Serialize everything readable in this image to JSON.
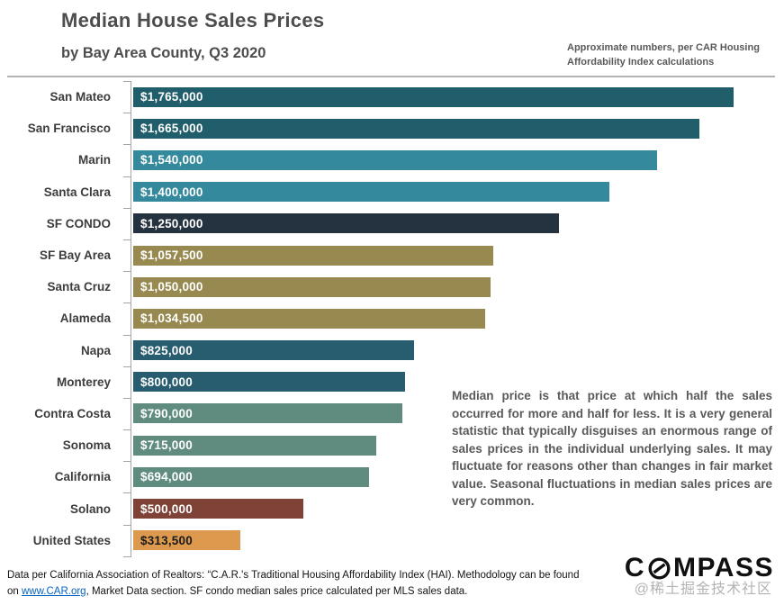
{
  "chart_data": {
    "type": "bar",
    "orientation": "horizontal",
    "title": "Median House Sales Prices",
    "subtitle": "by Bay Area County, Q3 2020",
    "note": "Approximate numbers, per CAR Housing Affordability Index calculations",
    "categories": [
      "San Mateo",
      "San Francisco",
      "Marin",
      "Santa Clara",
      "SF CONDO",
      "SF Bay Area",
      "Santa Cruz",
      "Alameda",
      "Napa",
      "Monterey",
      "Contra Costa",
      "Sonoma",
      "California",
      "Solano",
      "United States"
    ],
    "values": [
      1765000,
      1665000,
      1540000,
      1400000,
      1250000,
      1057500,
      1050000,
      1034500,
      825000,
      800000,
      790000,
      715000,
      694000,
      500000,
      313500
    ],
    "value_labels": [
      "$1,765,000",
      "$1,665,000",
      "$1,540,000",
      "$1,400,000",
      "$1,250,000",
      "$1,057,500",
      "$1,050,000",
      "$1,034,500",
      "$825,000",
      "$800,000",
      "$790,000",
      "$715,000",
      "$694,000",
      "$500,000",
      "$313,500"
    ],
    "bar_colors": [
      "#215e6b",
      "#215e6b",
      "#35899d",
      "#35899d",
      "#253240",
      "#97894f",
      "#97894f",
      "#97894f",
      "#275d6f",
      "#275d6f",
      "#5f8c7f",
      "#5f8c7f",
      "#5f8c7f",
      "#7e4237",
      "#dd9a4e"
    ],
    "value_label_colors": [
      "#ffffff",
      "#ffffff",
      "#ffffff",
      "#ffffff",
      "#ffffff",
      "#ffffff",
      "#ffffff",
      "#ffffff",
      "#ffffff",
      "#ffffff",
      "#ffffff",
      "#ffffff",
      "#ffffff",
      "#ffffff",
      "#1a1a1a"
    ],
    "xlim": [
      0,
      1886000
    ],
    "grid": false,
    "axis_color": "#a6a6a6",
    "legend": "none",
    "annotation": "Median price is that price at which half the sales occurred for more and half for less. It is a very general statistic that typically disguises an enormous range of sales prices in the individual underlying sales. It may fluctuate for reasons other than changes in fair market value. Seasonal fluctuations in median sales prices are very common."
  },
  "footer": {
    "line1": "Data per California Association of Realtors: “C.A.R.'s Traditional Housing Affordability Index (HAI). Methodology",
    "line2_prefix": "can be found on ",
    "link": "www.CAR.org",
    "line2_suffix": ",  Market Data section. SF condo median sales price calculated per MLS sales data."
  },
  "logo": {
    "prefix": "C",
    "suffix": "MPASS"
  },
  "watermark": "@稀土掘金技术社区"
}
